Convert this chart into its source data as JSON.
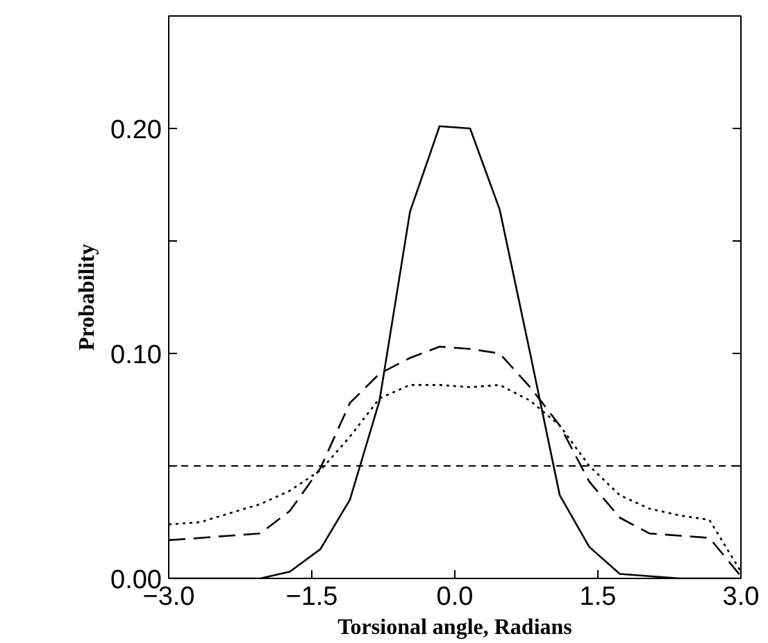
{
  "chart_data": {
    "type": "line",
    "xlabel": "Torsional angle, Radians",
    "ylabel": "Probability",
    "x": [
      -3.0,
      -2.67,
      -2.36,
      -2.04,
      -1.73,
      -1.41,
      -1.1,
      -0.79,
      -0.47,
      -0.16,
      0.16,
      0.47,
      0.79,
      1.1,
      1.41,
      1.73,
      2.04,
      2.36,
      2.67,
      3.0
    ],
    "series": [
      {
        "color": "#000000",
        "line_style": "solid",
        "values": [
          0,
          0,
          0,
          0,
          0.003,
          0.013,
          0.035,
          0.079,
          0.163,
          0.201,
          0.2,
          0.164,
          0.1,
          0.037,
          0.014,
          0.002,
          0.001,
          0,
          0,
          0
        ]
      },
      {
        "color": "#000000",
        "line_style": "dashed",
        "values": [
          0.017,
          0.018,
          0.019,
          0.02,
          0.03,
          0.049,
          0.078,
          0.091,
          0.098,
          0.103,
          0.102,
          0.1,
          0.085,
          0.068,
          0.043,
          0.027,
          0.02,
          0.019,
          0.018,
          0.001
        ]
      },
      {
        "color": "#000000",
        "line_style": "dotted",
        "values": [
          0.024,
          0.025,
          0.029,
          0.033,
          0.039,
          0.048,
          0.063,
          0.08,
          0.086,
          0.086,
          0.085,
          0.086,
          0.079,
          0.068,
          0.05,
          0.037,
          0.031,
          0.028,
          0.026,
          0.003
        ]
      }
    ],
    "ref_lines": [
      {
        "axis": "y",
        "value": 0.05,
        "label": null,
        "color": "#000000",
        "line_style": "dashed"
      }
    ],
    "xlim": [
      -3.0,
      3.0
    ],
    "xticks": [
      {
        "value": -3,
        "label": "−3.0"
      },
      {
        "value": -1.5,
        "label": "−1.5"
      },
      {
        "value": 0,
        "label": "0.0"
      },
      {
        "value": 1.5,
        "label": "1.5"
      },
      {
        "value": 3,
        "label": "3.0"
      }
    ],
    "ylim": [
      0,
      0.25
    ],
    "yticks": [
      {
        "value": 0,
        "label": "0.00"
      },
      {
        "value": 0.05,
        "label": null
      },
      {
        "value": 0.1,
        "label": "0.10"
      },
      {
        "value": 0.15,
        "label": null
      },
      {
        "value": 0.2,
        "label": "0.20"
      }
    ],
    "grid": false
  }
}
